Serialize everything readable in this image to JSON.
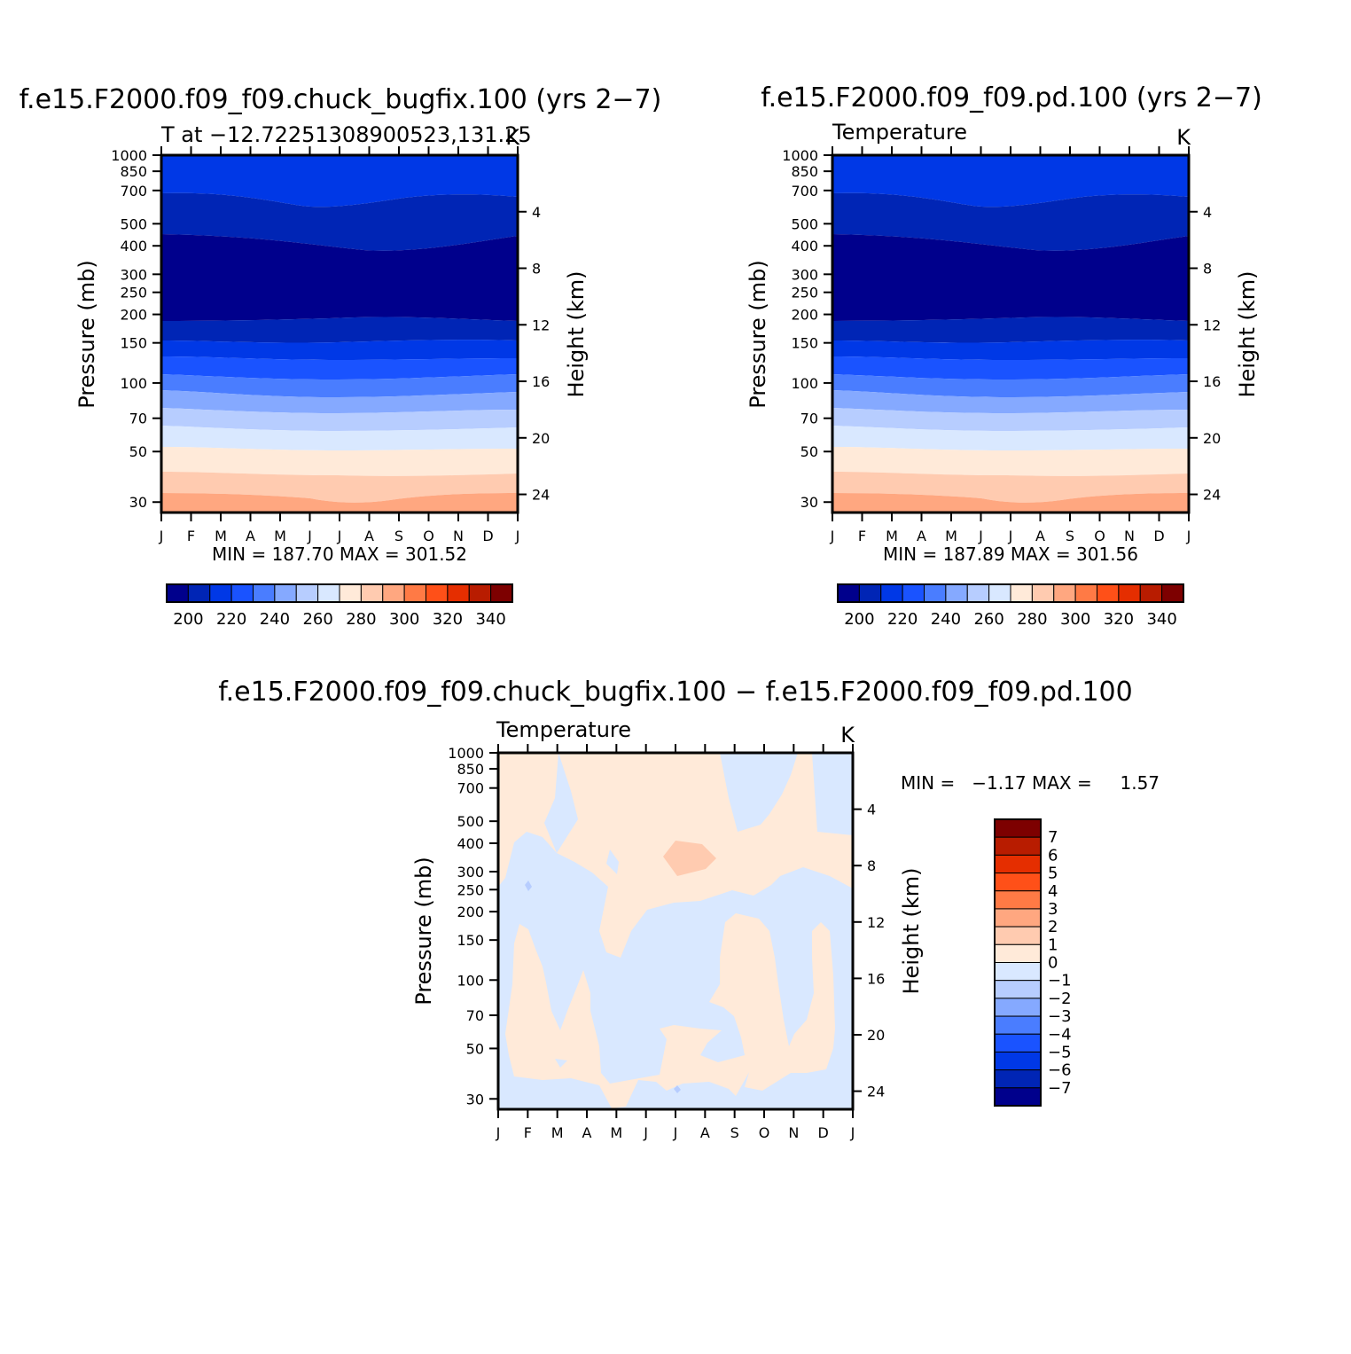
{
  "chart_data": [
    {
      "type": "heatmap",
      "title": "f.e15.F2000.f09_f09.chuck_bugfix.100 (yrs 2−7)",
      "left_label": "T at −12.72251308900523,131.25",
      "right_label": "K",
      "ylabel": "Pressure (mb)",
      "ylabel_right": "Height (km)",
      "x_ticks": [
        "J",
        "F",
        "M",
        "A",
        "M",
        "J",
        "J",
        "A",
        "S",
        "O",
        "N",
        "D",
        "J"
      ],
      "pressure_ticks": [
        "30",
        "50",
        "70",
        "100",
        "150",
        "200",
        "250",
        "300",
        "400",
        "500",
        "700",
        "850",
        "1000"
      ],
      "height_ticks": [
        "24",
        "20",
        "16",
        "12",
        "8",
        "4"
      ],
      "y_scale": "log",
      "stats_text": "MIN = 187.70 MAX = 301.52",
      "min": 187.7,
      "max": 301.52,
      "colorbar": {
        "orientation": "horizontal",
        "tick_labels": [
          "200",
          "220",
          "240",
          "260",
          "280",
          "300",
          "320",
          "340"
        ],
        "colors": [
          "#00008c",
          "#0025b5",
          "#0038e6",
          "#1a53ff",
          "#4a7dff",
          "#85a9ff",
          "#b7cdff",
          "#d9e8ff",
          "#ffead9",
          "#ffcbb0",
          "#ffa780",
          "#ff7a45",
          "#ff5018",
          "#e52e00",
          "#b81c00",
          "#7d0000"
        ]
      }
    },
    {
      "type": "heatmap",
      "title": "f.e15.F2000.f09_f09.pd.100 (yrs 2−7)",
      "left_label": "Temperature",
      "right_label": "K",
      "ylabel": "Pressure (mb)",
      "ylabel_right": "Height (km)",
      "x_ticks": [
        "J",
        "F",
        "M",
        "A",
        "M",
        "J",
        "J",
        "A",
        "S",
        "O",
        "N",
        "D",
        "J"
      ],
      "pressure_ticks": [
        "30",
        "50",
        "70",
        "100",
        "150",
        "200",
        "250",
        "300",
        "400",
        "500",
        "700",
        "850",
        "1000"
      ],
      "height_ticks": [
        "24",
        "20",
        "16",
        "12",
        "8",
        "4"
      ],
      "y_scale": "log",
      "stats_text": "MIN = 187.89 MAX = 301.56",
      "min": 187.89,
      "max": 301.56,
      "colorbar": {
        "orientation": "horizontal",
        "tick_labels": [
          "200",
          "220",
          "240",
          "260",
          "280",
          "300",
          "320",
          "340"
        ],
        "colors": [
          "#00008c",
          "#0025b5",
          "#0038e6",
          "#1a53ff",
          "#4a7dff",
          "#85a9ff",
          "#b7cdff",
          "#d9e8ff",
          "#ffead9",
          "#ffcbb0",
          "#ffa780",
          "#ff7a45",
          "#ff5018",
          "#e52e00",
          "#b81c00",
          "#7d0000"
        ]
      }
    },
    {
      "type": "heatmap",
      "title": "f.e15.F2000.f09_f09.chuck_bugfix.100 − f.e15.F2000.f09_f09.pd.100",
      "left_label": "Temperature",
      "right_label": "K",
      "ylabel": "Pressure (mb)",
      "ylabel_right": "Height (km)",
      "x_ticks": [
        "J",
        "F",
        "M",
        "A",
        "M",
        "J",
        "J",
        "A",
        "S",
        "O",
        "N",
        "D",
        "J"
      ],
      "pressure_ticks": [
        "30",
        "50",
        "70",
        "100",
        "150",
        "200",
        "250",
        "300",
        "400",
        "500",
        "700",
        "850",
        "1000"
      ],
      "height_ticks": [
        "24",
        "20",
        "16",
        "12",
        "8",
        "4"
      ],
      "y_scale": "log",
      "stats_text": "MIN =   −1.17 MAX =     1.57",
      "min": -1.17,
      "max": 1.57,
      "colorbar": {
        "orientation": "vertical",
        "tick_labels": [
          "7",
          "6",
          "5",
          "4",
          "3",
          "2",
          "1",
          "0",
          "−1",
          "−2",
          "−3",
          "−4",
          "−5",
          "−6",
          "−7"
        ],
        "colors": [
          "#7d0000",
          "#b81c00",
          "#e52e00",
          "#ff5018",
          "#ff7a45",
          "#ffa780",
          "#ffcbb0",
          "#ffead9",
          "#d9e8ff",
          "#b7cdff",
          "#85a9ff",
          "#4a7dff",
          "#1a53ff",
          "#0038e6",
          "#0025b5",
          "#00008c"
        ]
      }
    }
  ]
}
